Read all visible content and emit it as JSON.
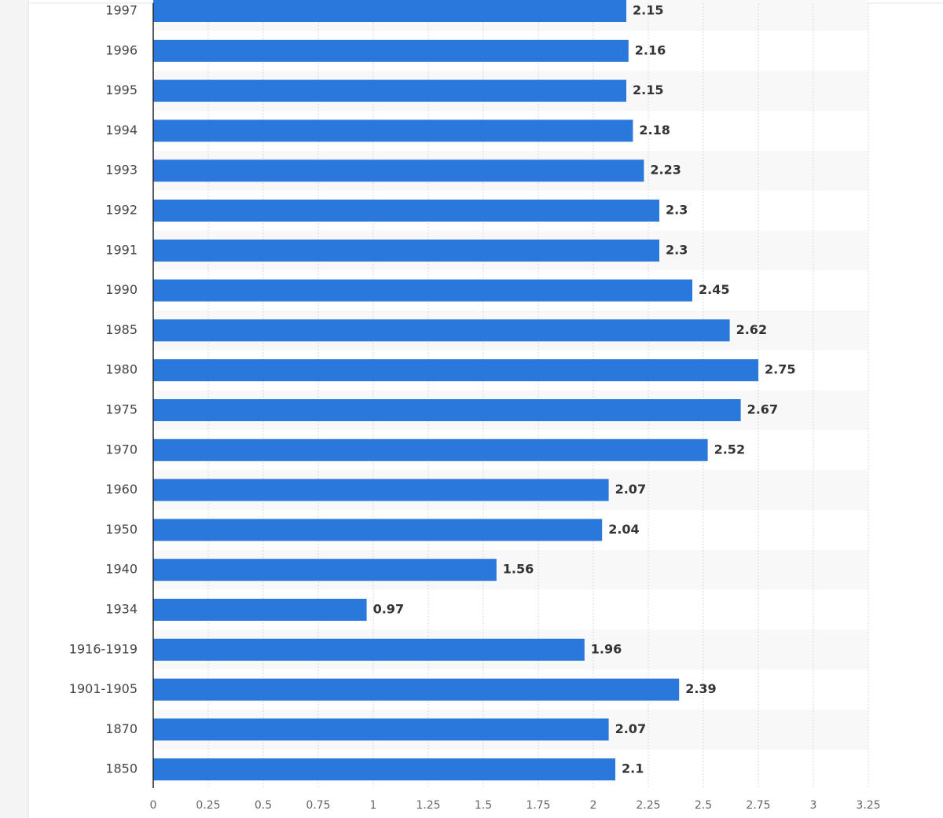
{
  "chart_data": {
    "type": "hbar",
    "categories": [
      "1997",
      "1996",
      "1995",
      "1994",
      "1993",
      "1992",
      "1991",
      "1990",
      "1985",
      "1980",
      "1975",
      "1970",
      "1960",
      "1950",
      "1940",
      "1934",
      "1916-1919",
      "1901-1905",
      "1870",
      "1850"
    ],
    "values": [
      2.15,
      2.16,
      2.15,
      2.18,
      2.23,
      2.3,
      2.3,
      2.45,
      2.62,
      2.75,
      2.67,
      2.52,
      2.07,
      2.04,
      1.56,
      0.97,
      1.96,
      2.39,
      2.07,
      2.1
    ],
    "color": "#2a78dc",
    "xlim": [
      0,
      3.25
    ],
    "xticks": [
      0,
      0.25,
      0.5,
      0.75,
      1,
      1.25,
      1.5,
      1.75,
      2,
      2.25,
      2.5,
      2.75,
      3,
      3.25
    ],
    "grid": true
  }
}
